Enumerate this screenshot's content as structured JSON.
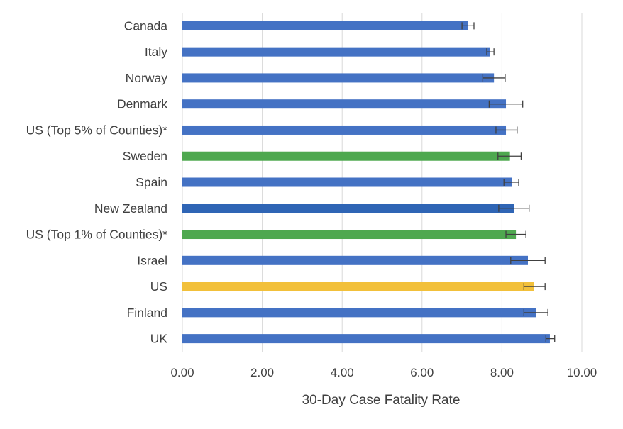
{
  "chart_data": {
    "type": "bar",
    "orientation": "horizontal",
    "xlabel": "30-Day Case Fatality Rate",
    "ylabel": "",
    "xlim": [
      0,
      10
    ],
    "x_ticks": [
      "0.00",
      "2.00",
      "4.00",
      "6.00",
      "8.00",
      "10.00"
    ],
    "x_tick_values": [
      0,
      2,
      4,
      6,
      8,
      10
    ],
    "grid": "vertical",
    "legend": "none",
    "error_bars": true,
    "colors": {
      "default": "#4472c4",
      "highlight_green": "#4ea84f",
      "highlight_dark_blue": "#2f65b5",
      "highlight_yellow": "#f2c03a",
      "grid": "#d9d9d9",
      "error_bar": "#404040"
    },
    "categories": [
      "Canada",
      "Italy",
      "Norway",
      "Denmark",
      "US (Top 5% of Counties)*",
      "Sweden",
      "Spain",
      "New Zealand",
      "US (Top 1% of Counties)*",
      "Israel",
      "US",
      "Finland",
      "UK"
    ],
    "values": [
      7.15,
      7.7,
      7.8,
      8.1,
      8.1,
      8.2,
      8.25,
      8.3,
      8.35,
      8.65,
      8.8,
      8.85,
      9.2
    ],
    "error_low": [
      7.0,
      7.62,
      7.52,
      7.68,
      7.85,
      7.9,
      8.05,
      7.92,
      8.1,
      8.22,
      8.55,
      8.55,
      9.1
    ],
    "error_high": [
      7.3,
      7.8,
      8.08,
      8.52,
      8.38,
      8.48,
      8.42,
      8.68,
      8.6,
      9.08,
      9.08,
      9.15,
      9.32
    ],
    "bar_colors": [
      "default",
      "default",
      "default",
      "default",
      "default",
      "highlight_green",
      "default",
      "highlight_dark_blue",
      "highlight_green",
      "default",
      "highlight_yellow",
      "default",
      "default"
    ]
  }
}
